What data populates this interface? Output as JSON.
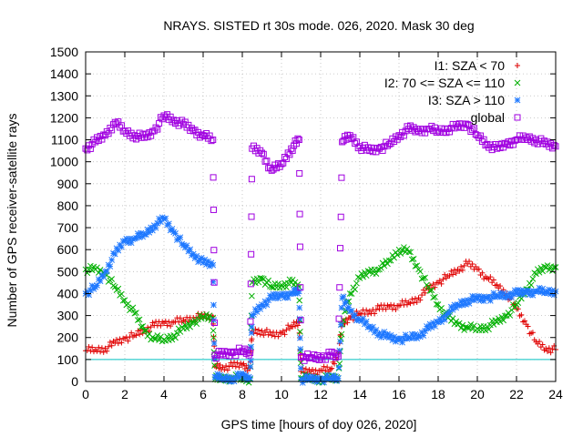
{
  "chart_data": {
    "type": "scatter",
    "title": "NRAYS. SISTED rt 30s mode. 026, 2020. Mask 30 deg",
    "xlabel": "GPS time [hours of doy 026, 2020]",
    "ylabel": "Number of GPS receiver-satellite rays",
    "xlim": [
      0,
      24
    ],
    "ylim": [
      0,
      1500
    ],
    "xticks": [
      "0",
      "2",
      "4",
      "6",
      "8",
      "10",
      "12",
      "14",
      "16",
      "18",
      "20",
      "22",
      "24"
    ],
    "yticks": [
      "0",
      "100",
      "200",
      "300",
      "400",
      "500",
      "600",
      "700",
      "800",
      "900",
      "1000",
      "1100",
      "1200",
      "1300",
      "1400",
      "1500"
    ],
    "grid": true,
    "legend_position": "top-right",
    "reference_line": {
      "y": 100,
      "color": "#00c0c0"
    },
    "series": [
      {
        "name": "I1: SZA < 70",
        "marker": "plus",
        "color": "#e00000",
        "points": [
          [
            0,
            140
          ],
          [
            0.5,
            145
          ],
          [
            1,
            150
          ],
          [
            1.5,
            175
          ],
          [
            2,
            195
          ],
          [
            2.5,
            210
          ],
          [
            3,
            235
          ],
          [
            3.5,
            255
          ],
          [
            4,
            265
          ],
          [
            4.5,
            270
          ],
          [
            5,
            280
          ],
          [
            5.5,
            290
          ],
          [
            6,
            295
          ],
          [
            6.5,
            295
          ],
          [
            6.6,
            70
          ],
          [
            7,
            65
          ],
          [
            7.5,
            70
          ],
          [
            8,
            75
          ],
          [
            8.4,
            60
          ],
          [
            8.5,
            230
          ],
          [
            9,
            230
          ],
          [
            9.5,
            210
          ],
          [
            10,
            220
          ],
          [
            10.5,
            250
          ],
          [
            10.9,
            270
          ],
          [
            11,
            45
          ],
          [
            11.5,
            45
          ],
          [
            12,
            50
          ],
          [
            12.5,
            55
          ],
          [
            12.9,
            130
          ],
          [
            13.1,
            260
          ],
          [
            13.5,
            290
          ],
          [
            14,
            310
          ],
          [
            14.5,
            320
          ],
          [
            15,
            330
          ],
          [
            15.5,
            340
          ],
          [
            16,
            345
          ],
          [
            16.5,
            360
          ],
          [
            17,
            380
          ],
          [
            17.5,
            420
          ],
          [
            18,
            450
          ],
          [
            18.5,
            480
          ],
          [
            19,
            510
          ],
          [
            19.5,
            535
          ],
          [
            20,
            510
          ],
          [
            20.5,
            470
          ],
          [
            21,
            440
          ],
          [
            21.5,
            400
          ],
          [
            22,
            330
          ],
          [
            22.5,
            260
          ],
          [
            23,
            180
          ],
          [
            23.5,
            150
          ],
          [
            24,
            145
          ]
        ]
      },
      {
        "name": "I2: 70 <= SZA <= 110",
        "marker": "cross",
        "color": "#00b000",
        "points": [
          [
            0,
            510
          ],
          [
            0.5,
            510
          ],
          [
            1,
            490
          ],
          [
            1.5,
            430
          ],
          [
            2,
            370
          ],
          [
            2.5,
            310
          ],
          [
            3,
            230
          ],
          [
            3.5,
            195
          ],
          [
            4,
            190
          ],
          [
            4.5,
            210
          ],
          [
            5,
            240
          ],
          [
            5.5,
            270
          ],
          [
            6,
            295
          ],
          [
            6.5,
            290
          ],
          [
            6.6,
            10
          ],
          [
            7,
            15
          ],
          [
            7.5,
            15
          ],
          [
            8,
            15
          ],
          [
            8.4,
            10
          ],
          [
            8.5,
            450
          ],
          [
            9,
            470
          ],
          [
            9.5,
            430
          ],
          [
            10,
            440
          ],
          [
            10.5,
            450
          ],
          [
            10.9,
            430
          ],
          [
            11,
            15
          ],
          [
            11.5,
            15
          ],
          [
            12,
            10
          ],
          [
            12.5,
            15
          ],
          [
            12.9,
            15
          ],
          [
            13.1,
            260
          ],
          [
            13.5,
            400
          ],
          [
            14,
            470
          ],
          [
            14.5,
            500
          ],
          [
            15,
            510
          ],
          [
            15.5,
            550
          ],
          [
            16,
            600
          ],
          [
            16.5,
            590
          ],
          [
            17,
            510
          ],
          [
            17.5,
            430
          ],
          [
            18,
            350
          ],
          [
            18.5,
            290
          ],
          [
            19,
            260
          ],
          [
            19.5,
            245
          ],
          [
            20,
            240
          ],
          [
            20.5,
            250
          ],
          [
            21,
            270
          ],
          [
            21.5,
            300
          ],
          [
            22,
            350
          ],
          [
            22.5,
            420
          ],
          [
            23,
            490
          ],
          [
            23.5,
            520
          ],
          [
            24,
            520
          ]
        ]
      },
      {
        "name": "I3: SZA > 110",
        "marker": "star",
        "color": "#1e78ff",
        "points": [
          [
            0,
            400
          ],
          [
            0.5,
            430
          ],
          [
            1,
            500
          ],
          [
            1.5,
            580
          ],
          [
            2,
            640
          ],
          [
            2.5,
            650
          ],
          [
            3,
            670
          ],
          [
            3.5,
            710
          ],
          [
            4,
            740
          ],
          [
            4.5,
            680
          ],
          [
            5,
            620
          ],
          [
            5.5,
            580
          ],
          [
            6,
            540
          ],
          [
            6.5,
            530
          ],
          [
            6.6,
            20
          ],
          [
            7,
            15
          ],
          [
            7.5,
            15
          ],
          [
            8,
            25
          ],
          [
            8.4,
            15
          ],
          [
            8.5,
            300
          ],
          [
            9,
            350
          ],
          [
            9.5,
            380
          ],
          [
            10,
            390
          ],
          [
            10.5,
            400
          ],
          [
            10.9,
            410
          ],
          [
            11,
            10
          ],
          [
            11.5,
            10
          ],
          [
            12,
            10
          ],
          [
            12.5,
            15
          ],
          [
            12.9,
            15
          ],
          [
            13.1,
            380
          ],
          [
            13.5,
            320
          ],
          [
            14,
            280
          ],
          [
            14.5,
            250
          ],
          [
            15,
            220
          ],
          [
            15.5,
            200
          ],
          [
            16,
            190
          ],
          [
            16.5,
            200
          ],
          [
            17,
            210
          ],
          [
            17.5,
            240
          ],
          [
            18,
            270
          ],
          [
            18.5,
            310
          ],
          [
            19,
            350
          ],
          [
            19.5,
            370
          ],
          [
            20,
            375
          ],
          [
            20.5,
            380
          ],
          [
            21,
            390
          ],
          [
            21.5,
            395
          ],
          [
            22,
            400
          ],
          [
            22.5,
            405
          ],
          [
            23,
            410
          ],
          [
            23.5,
            410
          ],
          [
            24,
            410
          ]
        ]
      },
      {
        "name": "global",
        "marker": "square",
        "color": "#a000e0",
        "points": [
          [
            0,
            1060
          ],
          [
            0.5,
            1090
          ],
          [
            1,
            1120
          ],
          [
            1.5,
            1180
          ],
          [
            2,
            1140
          ],
          [
            2.5,
            1120
          ],
          [
            3,
            1110
          ],
          [
            3.5,
            1140
          ],
          [
            4,
            1210
          ],
          [
            4.5,
            1190
          ],
          [
            5,
            1170
          ],
          [
            5.5,
            1140
          ],
          [
            6,
            1120
          ],
          [
            6.5,
            1100
          ],
          [
            6.6,
            120
          ],
          [
            7,
            125
          ],
          [
            7.5,
            130
          ],
          [
            8,
            140
          ],
          [
            8.4,
            130
          ],
          [
            8.5,
            1060
          ],
          [
            9,
            1040
          ],
          [
            9.5,
            960
          ],
          [
            10,
            990
          ],
          [
            10.5,
            1060
          ],
          [
            10.9,
            1100
          ],
          [
            11,
            110
          ],
          [
            11.5,
            110
          ],
          [
            12,
            110
          ],
          [
            12.5,
            120
          ],
          [
            12.9,
            115
          ],
          [
            13.1,
            1090
          ],
          [
            13.5,
            1120
          ],
          [
            14,
            1070
          ],
          [
            14.5,
            1050
          ],
          [
            15,
            1060
          ],
          [
            15.5,
            1080
          ],
          [
            16,
            1120
          ],
          [
            16.5,
            1150
          ],
          [
            17,
            1140
          ],
          [
            17.5,
            1150
          ],
          [
            18,
            1140
          ],
          [
            18.5,
            1150
          ],
          [
            19,
            1160
          ],
          [
            19.5,
            1170
          ],
          [
            20,
            1120
          ],
          [
            20.5,
            1080
          ],
          [
            21,
            1060
          ],
          [
            21.5,
            1080
          ],
          [
            22,
            1100
          ],
          [
            22.5,
            1110
          ],
          [
            23,
            1100
          ],
          [
            23.5,
            1080
          ],
          [
            24,
            1070
          ]
        ]
      }
    ]
  }
}
